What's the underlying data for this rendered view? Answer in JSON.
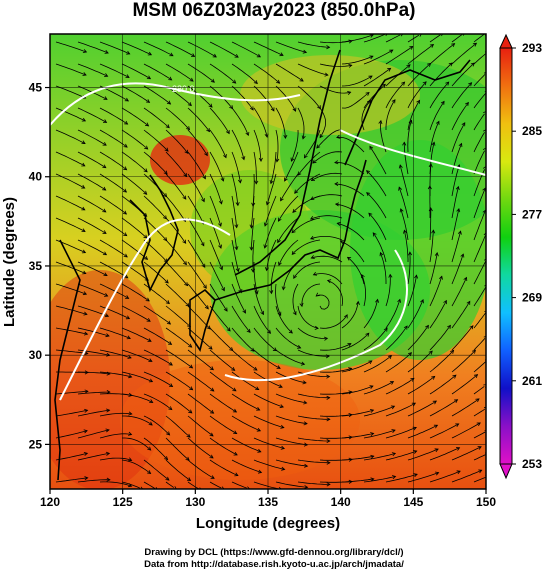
{
  "title": "MSM 06Z03May2023 (850.0hPa)",
  "x_axis": {
    "label": "Longitude (degrees)",
    "range": [
      120,
      150
    ],
    "ticks": [
      "120",
      "125",
      "130",
      "135",
      "140",
      "145",
      "150"
    ]
  },
  "y_axis": {
    "label": "Latitude  (degrees)",
    "range": [
      22.5,
      48
    ],
    "ticks": [
      "25",
      "30",
      "35",
      "40",
      "45"
    ]
  },
  "colorbar": {
    "ticks": [
      "293",
      "285",
      "277",
      "269",
      "261",
      "253"
    ],
    "min": 253,
    "max": 293,
    "colors": [
      "#e010c8",
      "#8a10c8",
      "#1010c8",
      "#1060ff",
      "#10c0ff",
      "#10d8a0",
      "#10d010",
      "#70d810",
      "#d8e810",
      "#f0c010",
      "#f07010",
      "#e82010"
    ]
  },
  "map_annotation": "280.0",
  "credits": {
    "line1": "Drawing by DCL (https://www.gfd-dennou.org/library/dcl/)",
    "line2": "Data from http://database.rish.kyoto-u.ac.jp/arch/jmadata/"
  },
  "chart_data": {
    "type": "heatmap",
    "title": "MSM 06Z03May2023 (850.0hPa)",
    "xlabel": "Longitude (degrees)",
    "ylabel": "Latitude  (degrees)",
    "xlim": [
      120,
      150
    ],
    "ylim": [
      22.5,
      48
    ],
    "colorbar_range": [
      253,
      293
    ],
    "overlay": "streamlines",
    "contour_label": "280.0",
    "low_pressure_center": [
      138.7,
      32.7
    ]
  }
}
